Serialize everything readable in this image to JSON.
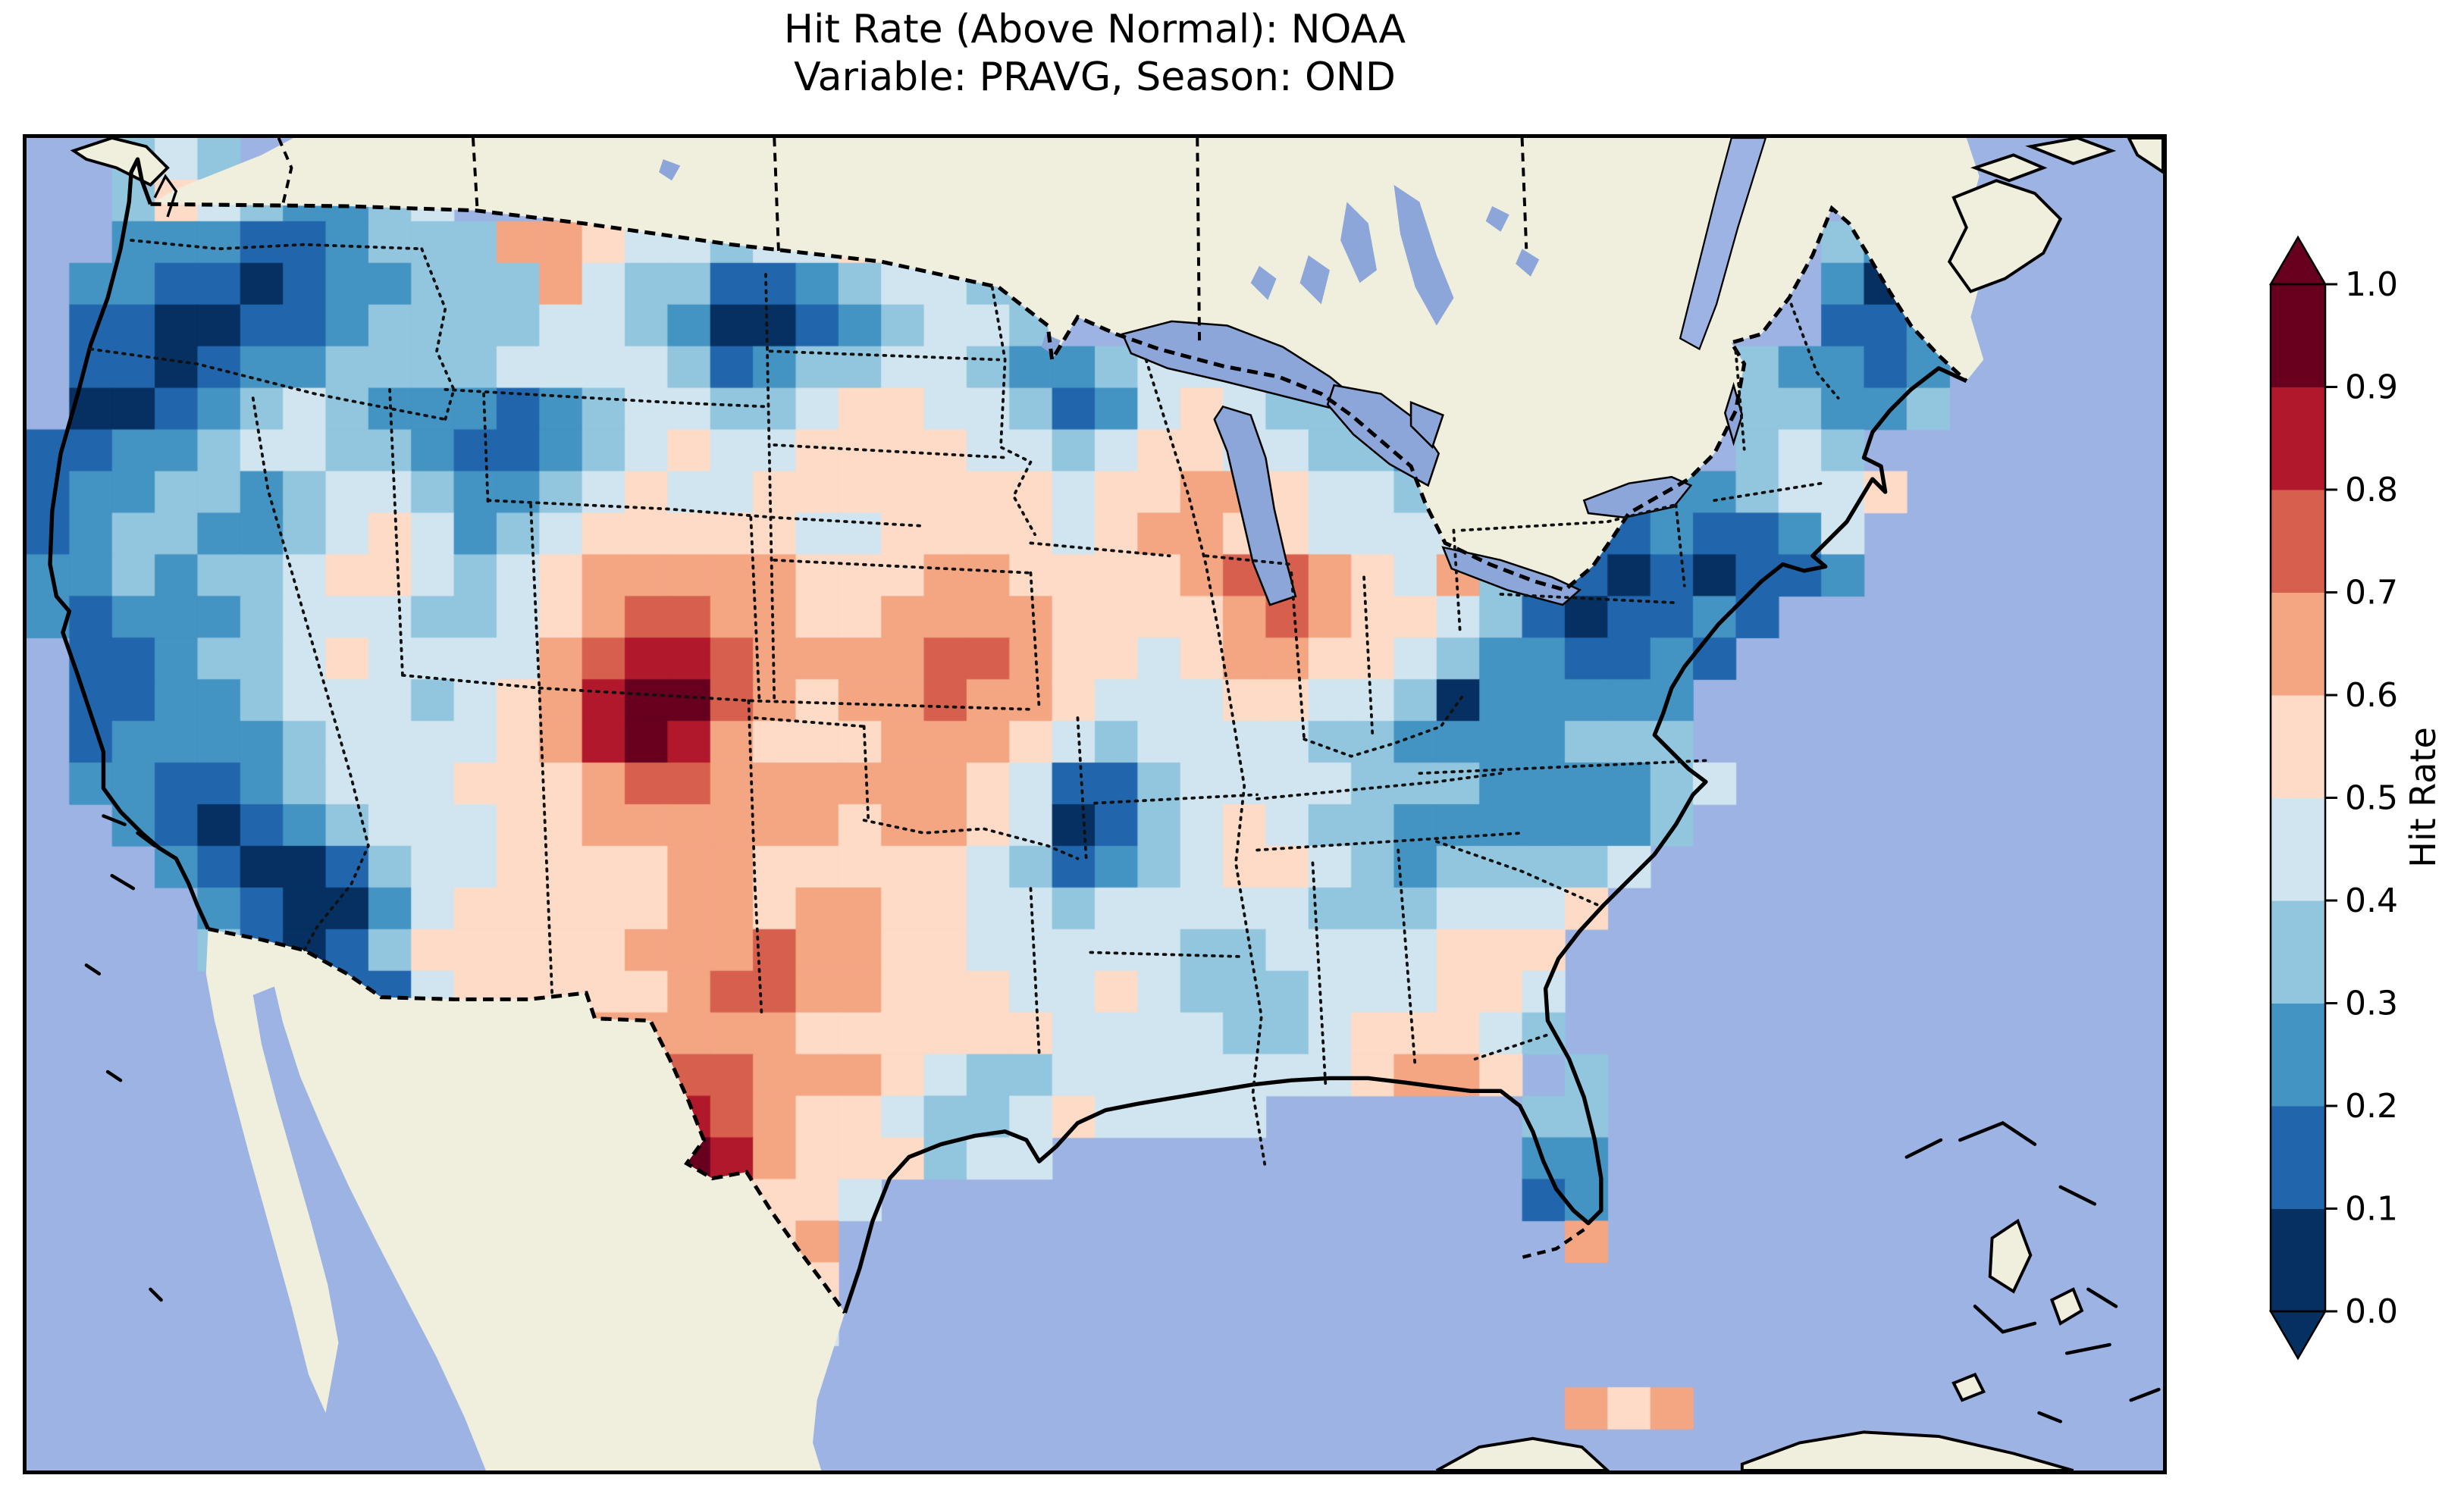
{
  "title": {
    "line1": "Hit Rate (Above Normal): NOAA",
    "line2": "Variable: PRAVG, Season: OND"
  },
  "colorbar": {
    "label": "Hit Rate",
    "ticks": [
      "1.0",
      "0.9",
      "0.8",
      "0.7",
      "0.6",
      "0.5",
      "0.4",
      "0.3",
      "0.2",
      "0.1",
      "0.0"
    ],
    "over_arrow_color": "#67001f",
    "under_arrow_color": "#053061"
  },
  "map": {
    "colors": {
      "ocean": "#9db3e3",
      "land": "#f0eedc",
      "lake": "#8ca6d9",
      "coastline": "#000000",
      "border": "#000000"
    }
  },
  "chart_data": {
    "type": "heatmap",
    "title": "Hit Rate (Above Normal): NOAA — Variable: PRAVG, Season: OND",
    "region": "Contiguous United States",
    "colorbar_label": "Hit Rate",
    "bins": [
      0.0,
      0.1,
      0.2,
      0.3,
      0.4,
      0.5,
      0.6,
      0.7,
      0.8,
      0.9,
      1.0
    ],
    "palette": [
      "#053061",
      "#2166ac",
      "#4393c3",
      "#92c5de",
      "#d1e5f0",
      "#fddbc7",
      "#f4a582",
      "#d6604d",
      "#b2182b",
      "#67001f"
    ],
    "legend_position": "right",
    "grid": {
      "note": "Each char is the hit-rate bin index (0 = 0.0-0.1 ... 9 = 0.9-1.0), '.' = no data. 50 cols x 32 rows over the map panel.",
      "cols": 50,
      "rows": 32,
      "cells": [
        "..343.............................................",
        "..35432234........................................",
        "..22211233366544344544....................323.....",
        ".22110122333643311234433..................202.....",
        ".11001123333443200123443..................112.....",
        ".110122333344443123344322344464.........32212.....",
        ".001234322212344334554431245433233......33223.....",
        "1122344332112345445555443455443323......343.......",
        "122332344322345445555555455665443....2223445......",
        "1233223454234555554455554566554444211121124.......",
        "2232334554345666665556655556776546321010112.......",
        "21222344433456776655666655556765543101121.........",
        ".112334544446788766667765545665543221121..........",
        ".11223444345689976566766544455443022222...........",
        ".12222344445689865556665434444332222333...........",
        ".221123444555677666666541134444333222234..........",
        "..2101234445566666656654013454332222223...........",
        "...21001344555566555554312345543233334............",
        "....210024555556656655443444443334445.............",
        "....31013555556667665544444334444555..............",
        ".......11455555677665554454333444554..............",
        ".............66666555555444433455543..............",
        "...............77666543344444445665.3.............",
        "...............87655433454444......33.............",
        "...............986555344...........22.............",
        "................6554...............12.............",
        ".................56.................6.............",
        "..................5...............................",
        "..................4...............................",
        "..................................................",
        "....................................656...........",
        ".................................................."
      ]
    }
  }
}
